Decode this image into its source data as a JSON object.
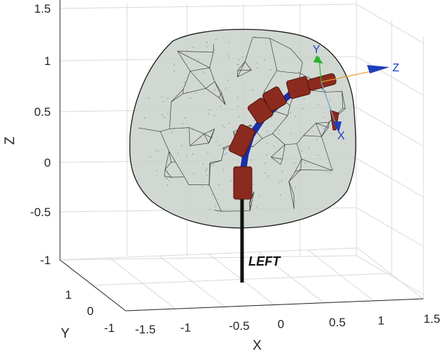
{
  "axes": {
    "x_label": "X",
    "y_label": "Y",
    "z_label": "Z",
    "z_ticks": [
      "1.5",
      "1",
      "0.5",
      "0",
      "-0.5",
      "-1"
    ],
    "x_ticks": [
      "-1.5",
      "-1",
      "-0.5",
      "0",
      "0.5",
      "1",
      "1.5"
    ],
    "y_ticks": [
      "1",
      "0",
      "-1"
    ],
    "grid": true
  },
  "robot": {
    "base_label": "LEFT",
    "link_color": "#8b2a1e",
    "joint_color": "#1b2fa8",
    "base_color": "#111111"
  },
  "workspace": {
    "fill_color": "#c7cfc8",
    "edge_color": "#1a1a1a"
  },
  "end_frame": {
    "x_label": "X",
    "y_label": "Y",
    "z_label": "Z",
    "z_color": "#1f3fbf",
    "y_color": "#2bb52b",
    "x_color": "#1f3fbf"
  }
}
